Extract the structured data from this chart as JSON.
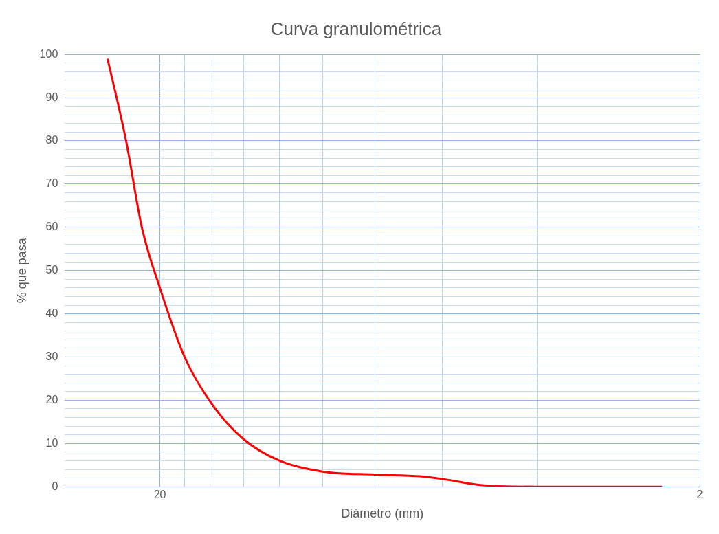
{
  "chart_data": {
    "type": "line",
    "title": "Curva granulométrica",
    "xlabel": "Diámetro (mm)",
    "ylabel": "% que pasa",
    "log": "x",
    "xlim": [
      30,
      2
    ],
    "xticks": [
      20,
      {
        "value": 18,
        "label": null
      },
      {
        "value": 16,
        "label": null
      },
      {
        "value": 14,
        "label": null
      },
      {
        "value": 12,
        "label": null
      },
      {
        "value": 10,
        "label": null
      },
      {
        "value": 8,
        "label": null
      },
      {
        "value": 6,
        "label": null
      },
      {
        "value": 4,
        "label": null
      },
      2
    ],
    "ylim": [
      0,
      100
    ],
    "yticks": [
      0,
      {
        "value": 2,
        "label": null
      },
      {
        "value": 4,
        "label": null
      },
      {
        "value": 6,
        "label": null
      },
      {
        "value": 8,
        "label": null
      },
      10,
      {
        "value": 12,
        "label": null
      },
      {
        "value": 14,
        "label": null
      },
      {
        "value": 16,
        "label": null
      },
      {
        "value": 18,
        "label": null
      },
      20,
      {
        "value": 22,
        "label": null
      },
      {
        "value": 24,
        "label": null
      },
      {
        "value": 26,
        "label": null
      },
      {
        "value": 28,
        "label": null
      },
      30,
      {
        "value": 32,
        "label": null
      },
      {
        "value": 34,
        "label": null
      },
      {
        "value": 36,
        "label": null
      },
      {
        "value": 38,
        "label": null
      },
      40,
      {
        "value": 42,
        "label": null
      },
      {
        "value": 44,
        "label": null
      },
      {
        "value": 46,
        "label": null
      },
      {
        "value": 48,
        "label": null
      },
      50,
      {
        "value": 52,
        "label": null
      },
      {
        "value": 54,
        "label": null
      },
      {
        "value": 56,
        "label": null
      },
      {
        "value": 58,
        "label": null
      },
      60,
      {
        "value": 62,
        "label": null
      },
      {
        "value": 64,
        "label": null
      },
      {
        "value": 66,
        "label": null
      },
      {
        "value": 68,
        "label": null
      },
      70,
      {
        "value": 72,
        "label": null
      },
      {
        "value": 74,
        "label": null
      },
      {
        "value": 76,
        "label": null
      },
      {
        "value": 78,
        "label": null
      },
      80,
      {
        "value": 82,
        "label": null
      },
      {
        "value": 84,
        "label": null
      },
      {
        "value": 86,
        "label": null
      },
      {
        "value": 88,
        "label": null
      },
      90,
      {
        "value": 92,
        "label": null
      },
      {
        "value": 94,
        "label": null
      },
      {
        "value": 96,
        "label": null
      },
      {
        "value": 98,
        "label": null
      },
      100
    ],
    "grid": true,
    "legend": false,
    "marker": "none",
    "line_style": "solid",
    "series": [
      {
        "color": "#ff0000",
        "x": [
          25,
          23.1,
          21.6,
          20,
          18,
          16,
          14,
          12,
          10,
          8,
          6.6,
          6,
          5.1,
          4,
          2.35
        ],
        "values": [
          99,
          80,
          60,
          46,
          30,
          19,
          11,
          6,
          3.5,
          2.8,
          2.4,
          1.8,
          0.4,
          0,
          0
        ]
      }
    ]
  }
}
